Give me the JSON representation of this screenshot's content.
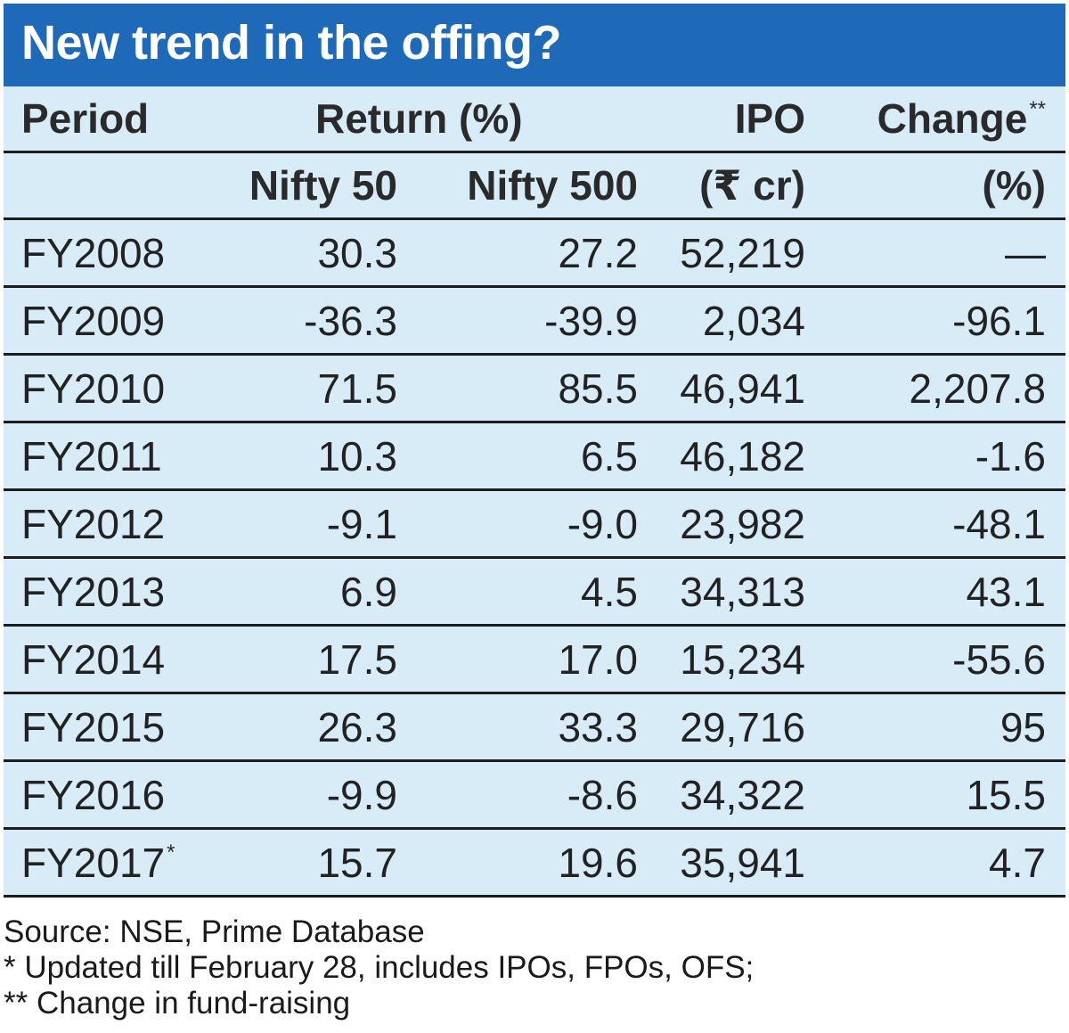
{
  "title": "New trend in the offing?",
  "header": {
    "row1": {
      "period": "Period",
      "return": "Return (%)",
      "ipo": "IPO",
      "change": "Change",
      "change_mark": "**"
    },
    "row2": {
      "nifty50": "Nifty 50",
      "nifty500": "Nifty 500",
      "ipo_unit": "(₹ cr)",
      "change_unit": "(%)"
    }
  },
  "rows": [
    {
      "period": "FY2008",
      "mark": "",
      "nifty50": "30.3",
      "nifty500": "27.2",
      "ipo": "52,219",
      "change": "—"
    },
    {
      "period": "FY2009",
      "mark": "",
      "nifty50": "-36.3",
      "nifty500": "-39.9",
      "ipo": "2,034",
      "change": "-96.1"
    },
    {
      "period": "FY2010",
      "mark": "",
      "nifty50": "71.5",
      "nifty500": "85.5",
      "ipo": "46,941",
      "change": "2,207.8"
    },
    {
      "period": "FY2011",
      "mark": "",
      "nifty50": "10.3",
      "nifty500": "6.5",
      "ipo": "46,182",
      "change": "-1.6"
    },
    {
      "period": "FY2012",
      "mark": "",
      "nifty50": "-9.1",
      "nifty500": "-9.0",
      "ipo": "23,982",
      "change": "-48.1"
    },
    {
      "period": "FY2013",
      "mark": "",
      "nifty50": "6.9",
      "nifty500": "4.5",
      "ipo": "34,313",
      "change": "43.1"
    },
    {
      "period": "FY2014",
      "mark": "",
      "nifty50": "17.5",
      "nifty500": "17.0",
      "ipo": "15,234",
      "change": "-55.6"
    },
    {
      "period": "FY2015",
      "mark": "",
      "nifty50": "26.3",
      "nifty500": "33.3",
      "ipo": "29,716",
      "change": "95"
    },
    {
      "period": "FY2016",
      "mark": "",
      "nifty50": "-9.9",
      "nifty500": "-8.6",
      "ipo": "34,322",
      "change": "15.5"
    },
    {
      "period": "FY2017",
      "mark": "*",
      "nifty50": "15.7",
      "nifty500": "19.6",
      "ipo": "35,941",
      "change": "4.7"
    }
  ],
  "footer": {
    "source": "Source: NSE, Prime Database",
    "note1": "* Updated till February 28, includes IPOs, FPOs, OFS;",
    "note2": "** Change in fund-raising"
  },
  "colors": {
    "title_bg": "#1e6ab8",
    "table_bg": "#d8ecf8",
    "rule": "#1c1c1c"
  }
}
